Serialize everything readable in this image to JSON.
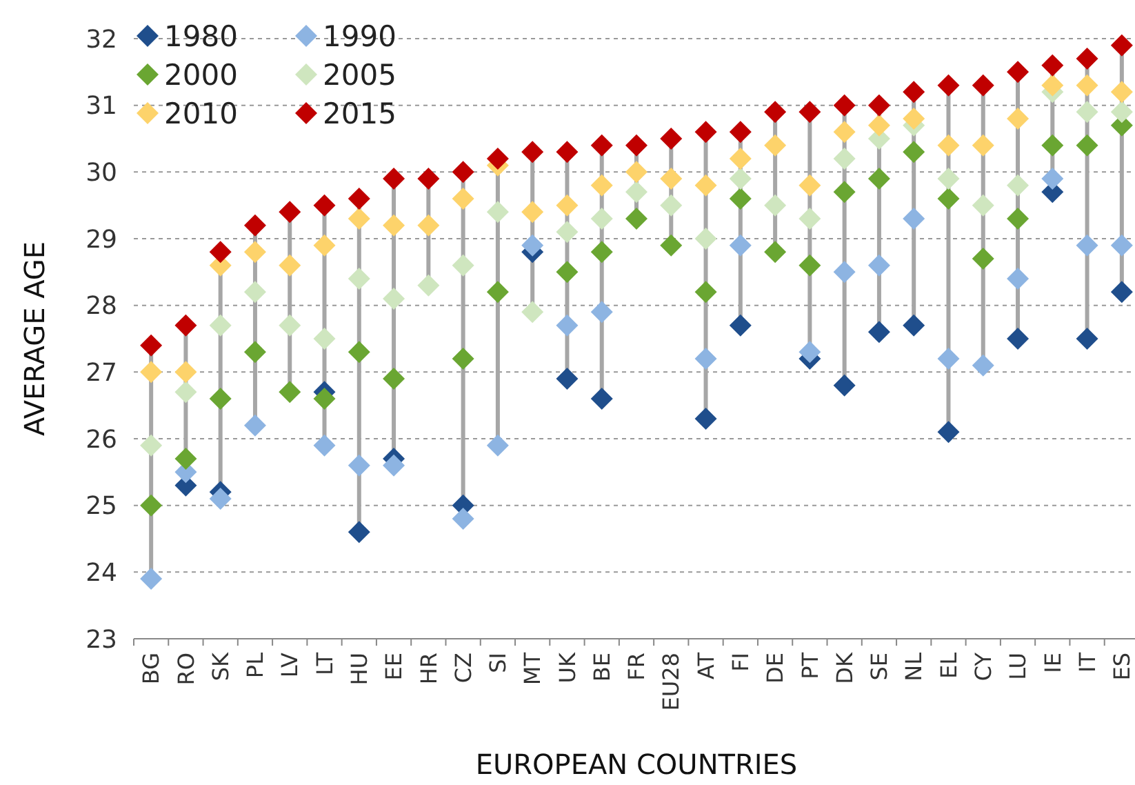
{
  "chart_data": {
    "type": "scatter",
    "xlabel": "EUROPEAN COUNTRIES",
    "ylabel": "AVERAGE AGE",
    "categories": [
      "BG",
      "RO",
      "SK",
      "PL",
      "LV",
      "LT",
      "HU",
      "EE",
      "HR",
      "CZ",
      "SI",
      "MT",
      "UK",
      "BE",
      "FR",
      "EU28",
      "AT",
      "FI",
      "DE",
      "PT",
      "DK",
      "SE",
      "NL",
      "EL",
      "CY",
      "LU",
      "IE",
      "IT",
      "ES"
    ],
    "series": [
      {
        "name": "1980",
        "color": "#1f4e8c",
        "values": [
          null,
          25.3,
          25.2,
          null,
          null,
          26.7,
          24.6,
          25.7,
          null,
          25.0,
          null,
          28.8,
          26.9,
          26.6,
          null,
          null,
          26.3,
          27.7,
          null,
          27.2,
          26.8,
          27.6,
          27.7,
          26.1,
          null,
          27.5,
          29.7,
          27.5,
          28.2
        ]
      },
      {
        "name": "1990",
        "color": "#8db4e2",
        "values": [
          23.9,
          25.5,
          25.1,
          26.2,
          null,
          25.9,
          25.6,
          25.6,
          null,
          24.8,
          25.9,
          28.9,
          27.7,
          27.9,
          null,
          null,
          27.2,
          28.9,
          null,
          27.3,
          28.5,
          28.6,
          29.3,
          27.2,
          27.1,
          28.4,
          29.9,
          28.9,
          28.9
        ]
      },
      {
        "name": "2000",
        "color": "#6aa632",
        "values": [
          25.0,
          25.7,
          26.6,
          27.3,
          26.7,
          26.6,
          27.3,
          26.9,
          null,
          27.2,
          28.2,
          null,
          28.5,
          28.8,
          29.3,
          28.9,
          28.2,
          29.6,
          28.8,
          28.6,
          29.7,
          29.9,
          30.3,
          29.6,
          28.7,
          29.3,
          30.4,
          30.4,
          30.7
        ]
      },
      {
        "name": "2005",
        "color": "#cfe6bf",
        "values": [
          25.9,
          26.7,
          27.7,
          28.2,
          27.7,
          27.5,
          28.4,
          28.1,
          28.3,
          28.6,
          29.4,
          27.9,
          29.1,
          29.3,
          29.7,
          29.5,
          29.0,
          29.9,
          29.5,
          29.3,
          30.2,
          30.5,
          30.7,
          29.9,
          29.5,
          29.8,
          31.2,
          30.9,
          30.9
        ]
      },
      {
        "name": "2010",
        "color": "#fdd36b",
        "values": [
          27.0,
          27.0,
          28.6,
          28.8,
          28.6,
          28.9,
          29.3,
          29.2,
          29.2,
          29.6,
          30.1,
          29.4,
          29.5,
          29.8,
          30.0,
          29.9,
          29.8,
          30.2,
          30.4,
          29.8,
          30.6,
          30.7,
          30.8,
          30.4,
          30.4,
          30.8,
          31.3,
          31.3,
          31.2
        ]
      },
      {
        "name": "2015",
        "color": "#c00000",
        "values": [
          27.4,
          27.7,
          28.8,
          29.2,
          29.4,
          29.5,
          29.6,
          29.9,
          29.9,
          30.0,
          30.2,
          30.3,
          30.3,
          30.4,
          30.4,
          30.5,
          30.6,
          30.6,
          30.9,
          30.9,
          31.0,
          31.0,
          31.2,
          31.3,
          31.3,
          31.5,
          31.6,
          31.7,
          31.9
        ]
      }
    ],
    "ylim": [
      23,
      32
    ],
    "yticks": [
      23,
      24,
      25,
      26,
      27,
      28,
      29,
      30,
      31,
      32
    ],
    "grid": "y",
    "legend": "top left",
    "marker": "diamond"
  }
}
